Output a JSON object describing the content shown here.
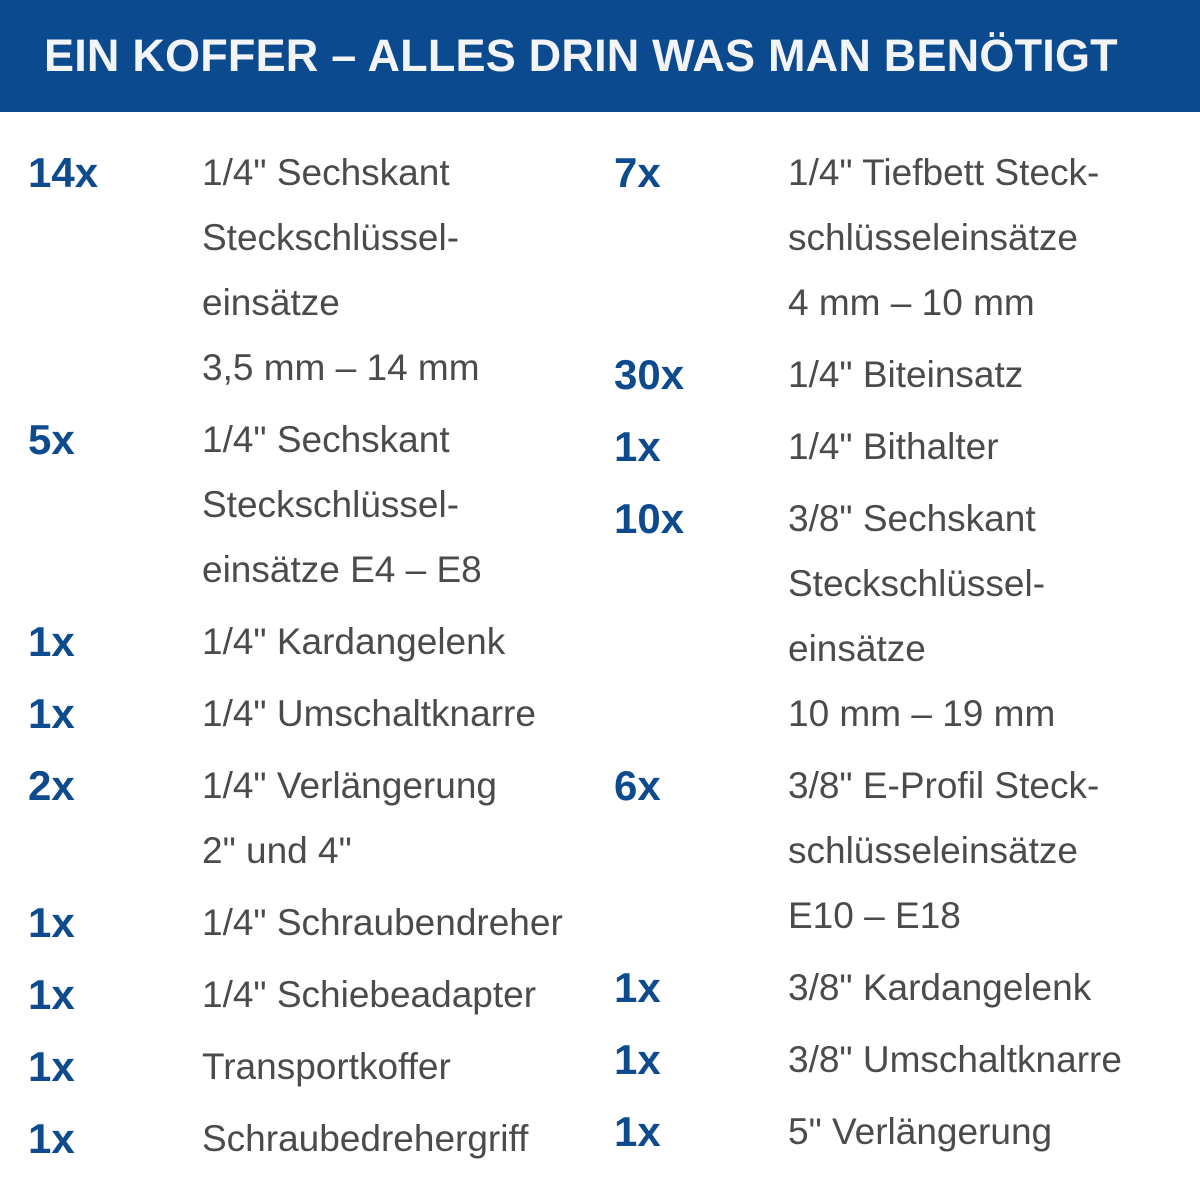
{
  "header": {
    "title": "EIN KOFFER – ALLES DRIN WAS MAN BENÖTIGT"
  },
  "columns": [
    {
      "items": [
        {
          "qty": "14x",
          "lines": [
            "1/4\" Sechskant",
            "Steckschlüssel-",
            "einsätze",
            "3,5 mm – 14 mm"
          ]
        },
        {
          "qty": "5x",
          "lines": [
            "1/4\" Sechskant",
            "Steckschlüssel-",
            "einsätze E4 – E8"
          ]
        },
        {
          "qty": "1x",
          "lines": [
            "1/4\" Kardangelenk"
          ]
        },
        {
          "qty": "1x",
          "lines": [
            "1/4\" Umschaltknarre"
          ]
        },
        {
          "qty": "2x",
          "lines": [
            "1/4\" Verlängerung",
            "2\" und 4\""
          ]
        },
        {
          "qty": "1x",
          "lines": [
            "1/4\" Schraubendreher"
          ]
        },
        {
          "qty": "1x",
          "lines": [
            "1/4\" Schiebeadapter"
          ]
        },
        {
          "qty": "1x",
          "lines": [
            "Transportkoffer"
          ]
        },
        {
          "qty": "1x",
          "lines": [
            "Schraubedrehergriff"
          ]
        }
      ]
    },
    {
      "items": [
        {
          "qty": "7x",
          "lines": [
            "1/4\" Tiefbett Steck-",
            "schlüsseleinsätze",
            "4 mm – 10 mm"
          ]
        },
        {
          "qty": "30x",
          "lines": [
            "1/4\" Biteinsatz"
          ]
        },
        {
          "qty": "1x",
          "lines": [
            "1/4\" Bithalter"
          ]
        },
        {
          "qty": "10x",
          "lines": [
            "3/8\" Sechskant",
            "Steckschlüssel-",
            "einsätze",
            "10 mm – 19 mm"
          ]
        },
        {
          "qty": "6x",
          "lines": [
            "3/8\" E-Profil Steck-",
            "schlüsseleinsätze",
            "E10 – E18"
          ]
        },
        {
          "qty": "1x",
          "lines": [
            "3/8\" Kardangelenk"
          ]
        },
        {
          "qty": "1x",
          "lines": [
            "3/8\" Umschaltknarre"
          ]
        },
        {
          "qty": "1x",
          "lines": [
            "5\" Verlängerung"
          ]
        }
      ]
    }
  ]
}
